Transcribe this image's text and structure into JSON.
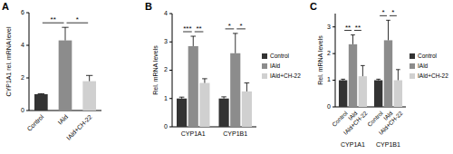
{
  "chart_data": [
    {
      "type": "bar",
      "title": "A",
      "y_label": "CYP1A1 rel. mRNA level",
      "categories": [
        "Control",
        "IAld",
        "IAld+CH-22"
      ],
      "values": [
        1,
        4.3,
        1.8
      ],
      "errors": [
        0.03,
        0.8,
        0.35
      ],
      "colors": [
        "#333333",
        "#8c8c8c",
        "#d0d0d0"
      ],
      "ylim": [
        0,
        6
      ],
      "yticks": [
        0,
        2,
        4,
        6
      ],
      "annotations": [
        {
          "text": "**",
          "between": [
            "Control",
            "IAld"
          ]
        },
        {
          "text": "*",
          "between": [
            "IAld",
            "IAld+CH-22"
          ]
        }
      ]
    },
    {
      "type": "bar",
      "title": "B",
      "y_label": "Rel. mRNA levels",
      "categories": [
        "CYP1A1",
        "CYP1B1"
      ],
      "series": [
        {
          "name": "Control",
          "color": "#333333",
          "values": [
            1,
            1
          ],
          "errors": [
            0.05,
            0.06
          ]
        },
        {
          "name": "IAld",
          "color": "#8c8c8c",
          "values": [
            2.85,
            2.6
          ],
          "errors": [
            0.35,
            0.7
          ]
        },
        {
          "name": "IAld+CH-22",
          "color": "#d0d0d0",
          "values": [
            1.55,
            1.25
          ],
          "errors": [
            0.15,
            0.3
          ]
        }
      ],
      "ylim": [
        0,
        4
      ],
      "yticks": [
        0,
        1,
        2,
        3,
        4
      ],
      "legend": "right",
      "annotations": [
        {
          "text": "***",
          "category": "CYP1A1",
          "between": [
            "Control",
            "IAld"
          ]
        },
        {
          "text": "**",
          "category": "CYP1A1",
          "between": [
            "IAld",
            "IAld+CH-22"
          ]
        },
        {
          "text": "*",
          "category": "CYP1B1",
          "between": [
            "Control",
            "IAld"
          ]
        },
        {
          "text": "*",
          "category": "CYP1B1",
          "between": [
            "IAld",
            "IAld+CH-22"
          ]
        }
      ]
    },
    {
      "type": "bar",
      "title": "C",
      "y_label": "Rel. mRNA levels",
      "categories": [
        "CYP1A1",
        "CYP1B1"
      ],
      "series": [
        {
          "name": "Control",
          "color": "#333333",
          "values": [
            1,
            1
          ],
          "errors": [
            0.04,
            0.04
          ]
        },
        {
          "name": "IAld",
          "color": "#8c8c8c",
          "values": [
            2.35,
            2.5
          ],
          "errors": [
            0.35,
            0.75
          ]
        },
        {
          "name": "IAld+CH-22",
          "color": "#d0d0d0",
          "values": [
            1.15,
            1.0
          ],
          "errors": [
            0.4,
            0.4
          ]
        }
      ],
      "ylim": [
        0,
        3.5
      ],
      "yticks": [
        0,
        1,
        2,
        3
      ],
      "legend": "right",
      "annotations": [
        {
          "text": "**",
          "category": "CYP1A1",
          "between": [
            "Control",
            "IAld"
          ]
        },
        {
          "text": "**",
          "category": "CYP1A1",
          "between": [
            "IAld",
            "IAld+CH-22"
          ]
        },
        {
          "text": "*",
          "category": "CYP1B1",
          "between": [
            "Control",
            "IAld"
          ]
        },
        {
          "text": "*",
          "category": "CYP1B1",
          "between": [
            "IAld",
            "IAld+CH-22"
          ]
        }
      ]
    }
  ]
}
